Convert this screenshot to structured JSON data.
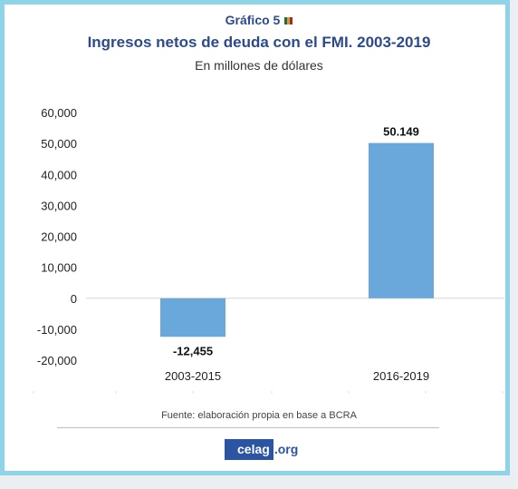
{
  "header": {
    "chart_number": "Gráfico 5",
    "title": "Ingresos netos de deuda con el FMI. 2003-2019",
    "subtitle": "En millones de dólares"
  },
  "chart_data": {
    "type": "bar",
    "title": "Ingresos netos de deuda con el FMI. 2003-2019",
    "subtitle": "En millones de dólares",
    "categories": [
      "2003-2015",
      "2016-2019"
    ],
    "values": [
      -12455,
      50149
    ],
    "data_labels": [
      "-12,455",
      "50.149"
    ],
    "ylim": [
      -20000,
      60000
    ],
    "yticks": [
      60000,
      50000,
      40000,
      30000,
      20000,
      10000,
      0,
      -10000,
      -20000
    ],
    "ytick_labels": [
      "60,000",
      "50,000",
      "40,000",
      "30,000",
      "20,000",
      "10,000",
      "0",
      "-10,000",
      "-20,000"
    ],
    "bar_color": "#6aa8dc",
    "grid": false,
    "legend": "none"
  },
  "footer": {
    "source": "Fuente: elaboración propia en base a BCRA",
    "logo_left": "celag",
    "logo_right": ".org"
  },
  "colors": {
    "frame_border": "#8ed4e9",
    "title_color": "#2c4a8c",
    "logo_blue": "#2b54a3"
  }
}
